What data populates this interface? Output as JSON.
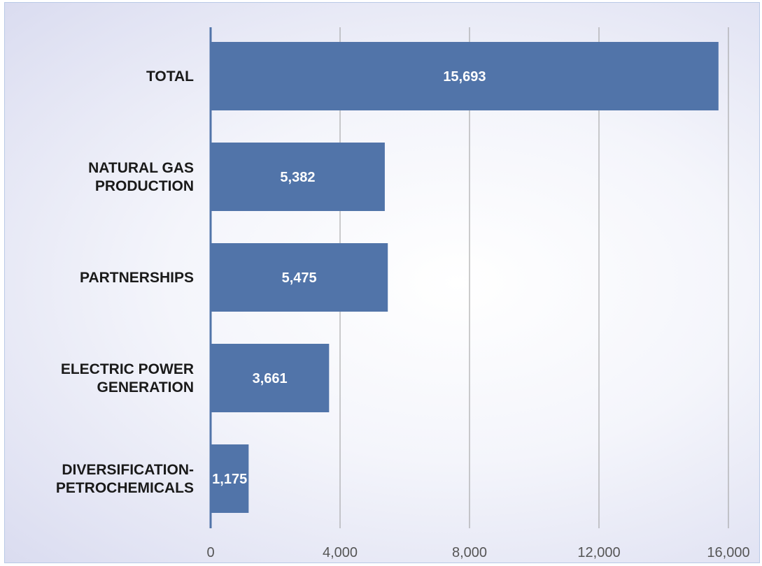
{
  "chart_data": {
    "type": "bar",
    "orientation": "horizontal",
    "categories": [
      [
        "TOTAL"
      ],
      [
        "NATURAL GAS",
        "PRODUCTION"
      ],
      [
        "PARTNERSHIPS"
      ],
      [
        "ELECTRIC POWER",
        "GENERATION"
      ],
      [
        "DIVERSIFICATION-",
        "PETROCHEMICALS"
      ]
    ],
    "values": [
      15693,
      5382,
      5475,
      3661,
      1175
    ],
    "value_labels": [
      "15,693",
      "5,382",
      "5,475",
      "3,661",
      "1,175"
    ],
    "xlim": [
      0,
      16000
    ],
    "x_ticks": [
      0,
      4000,
      8000,
      12000,
      16000
    ],
    "x_tick_labels": [
      "0",
      "4,000",
      "8,000",
      "12,000",
      "16,000"
    ],
    "title": "",
    "xlabel": "",
    "ylabel": "",
    "grid": "vertical",
    "legend": "none",
    "colors": {
      "bar": "#5174a9",
      "axis": "#5174a9",
      "grid": "#9a9a9a",
      "background_center": "#ffffff",
      "background_edge": "#dadcf0"
    }
  }
}
